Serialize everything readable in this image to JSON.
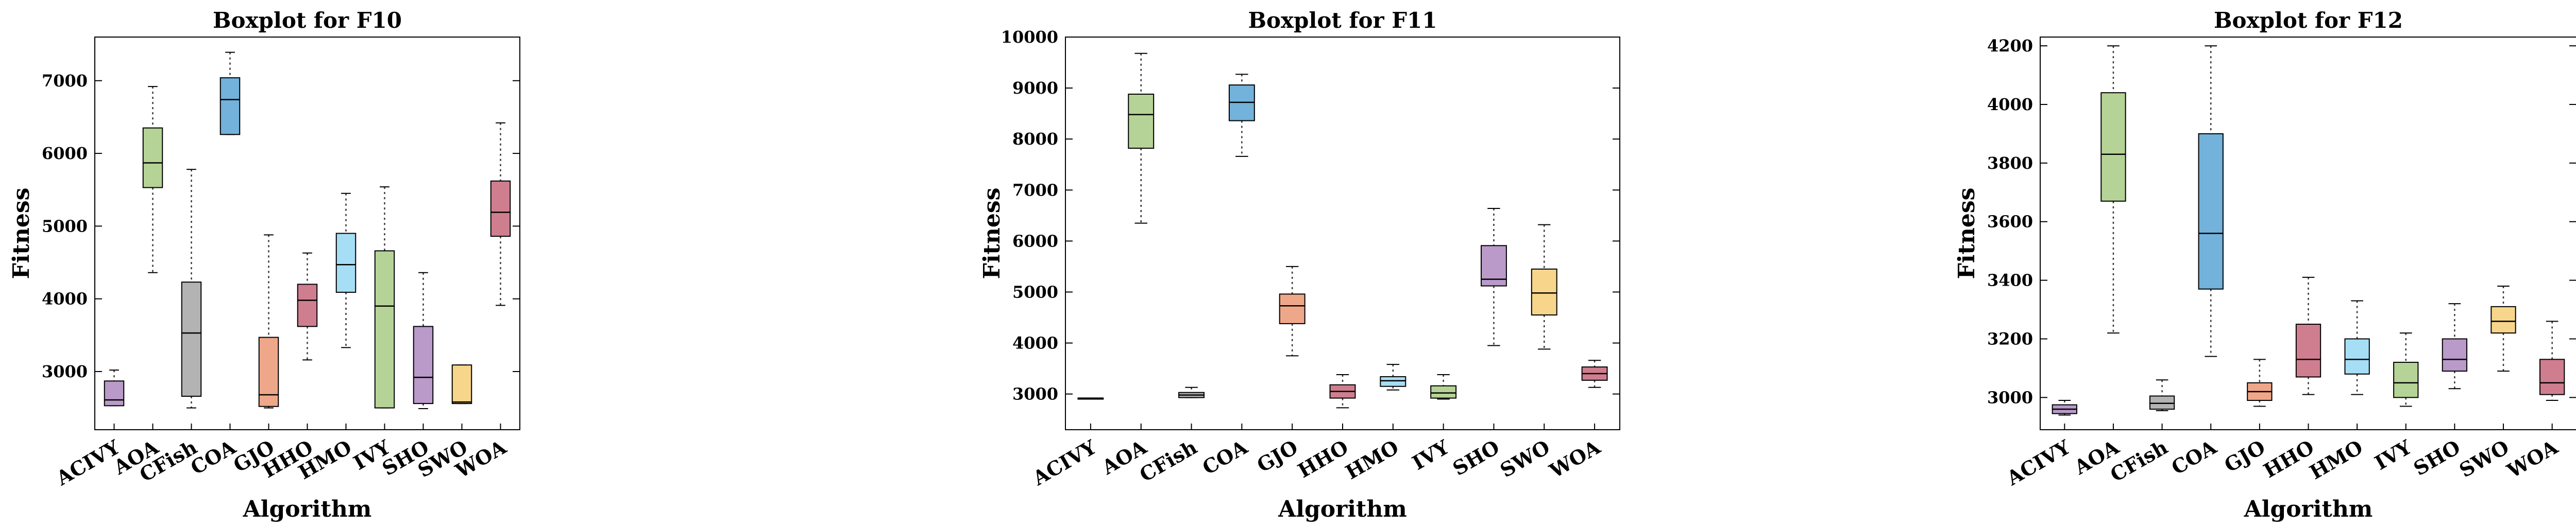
{
  "chart_data": [
    {
      "type": "boxplot",
      "title": "Boxplot for F10",
      "xlabel": "Algorithm",
      "ylabel": "Fitness",
      "ylim": [
        2200,
        7600
      ],
      "yticks": [
        3000,
        4000,
        5000,
        6000,
        7000
      ],
      "categories": [
        "ACIVY",
        "AOA",
        "CFish",
        "COA",
        "GJO",
        "HHO",
        "HMO",
        "IVY",
        "SHO",
        "SWO",
        "WOA"
      ],
      "boxes": [
        {
          "min": 2530,
          "q1": 2530,
          "median": 2610,
          "q3": 2870,
          "max": 3020,
          "color": "#b99ac9"
        },
        {
          "min": 4360,
          "q1": 5530,
          "median": 5870,
          "q3": 6350,
          "max": 6920,
          "color": "#b5d396"
        },
        {
          "min": 2500,
          "q1": 2660,
          "median": 3530,
          "q3": 4230,
          "max": 5780,
          "color": "#b3b3b3"
        },
        {
          "min": 6260,
          "q1": 6260,
          "median": 6740,
          "q3": 7040,
          "max": 7390,
          "color": "#73b2da"
        },
        {
          "min": 2500,
          "q1": 2520,
          "median": 2680,
          "q3": 3470,
          "max": 4880,
          "color": "#efa789"
        },
        {
          "min": 3160,
          "q1": 3620,
          "median": 3980,
          "q3": 4200,
          "max": 4630,
          "color": "#cf7e8f"
        },
        {
          "min": 3330,
          "q1": 4090,
          "median": 4470,
          "q3": 4900,
          "max": 5450,
          "color": "#a6def5"
        },
        {
          "min": 2500,
          "q1": 2500,
          "median": 3900,
          "q3": 4660,
          "max": 5540,
          "color": "#b5d396"
        },
        {
          "min": 2490,
          "q1": 2560,
          "median": 2920,
          "q3": 3620,
          "max": 4360,
          "color": "#b99ac9"
        },
        {
          "min": 2560,
          "q1": 2560,
          "median": 2580,
          "q3": 3090,
          "max": 3090,
          "color": "#f7d68b"
        },
        {
          "min": 3910,
          "q1": 4860,
          "median": 5190,
          "q3": 5620,
          "max": 6420,
          "color": "#cf7e8f"
        }
      ]
    },
    {
      "type": "boxplot",
      "title": "Boxplot for F11",
      "xlabel": "Algorithm",
      "ylabel": "Fitness",
      "ylim": [
        2300,
        10000
      ],
      "yticks": [
        3000,
        4000,
        5000,
        6000,
        7000,
        8000,
        9000,
        10000
      ],
      "categories": [
        "ACIVY",
        "AOA",
        "CFish",
        "COA",
        "GJO",
        "HHO",
        "HMO",
        "IVY",
        "SHO",
        "SWO",
        "WOA"
      ],
      "boxes": [
        {
          "min": 2920,
          "q1": 2920,
          "median": 2920,
          "q3": 2920,
          "max": 2920,
          "color": "#b99ac9"
        },
        {
          "min": 6350,
          "q1": 7820,
          "median": 8480,
          "q3": 8880,
          "max": 9680,
          "color": "#b5d396"
        },
        {
          "min": 2930,
          "q1": 2930,
          "median": 2980,
          "q3": 3030,
          "max": 3130,
          "color": "#b3b3b3"
        },
        {
          "min": 7660,
          "q1": 8360,
          "median": 8720,
          "q3": 9060,
          "max": 9270,
          "color": "#73b2da"
        },
        {
          "min": 3750,
          "q1": 4380,
          "median": 4730,
          "q3": 4960,
          "max": 5500,
          "color": "#efa789"
        },
        {
          "min": 2730,
          "q1": 2920,
          "median": 3050,
          "q3": 3180,
          "max": 3380,
          "color": "#cf7e8f"
        },
        {
          "min": 3080,
          "q1": 3150,
          "median": 3260,
          "q3": 3340,
          "max": 3580,
          "color": "#a6def5"
        },
        {
          "min": 2900,
          "q1": 2920,
          "median": 3020,
          "q3": 3160,
          "max": 3380,
          "color": "#b5d396"
        },
        {
          "min": 3950,
          "q1": 5120,
          "median": 5250,
          "q3": 5910,
          "max": 6640,
          "color": "#b99ac9"
        },
        {
          "min": 3880,
          "q1": 4550,
          "median": 4980,
          "q3": 5450,
          "max": 6320,
          "color": "#f7d68b"
        },
        {
          "min": 3130,
          "q1": 3270,
          "median": 3400,
          "q3": 3530,
          "max": 3660,
          "color": "#cf7e8f"
        }
      ]
    },
    {
      "type": "boxplot",
      "title": "Boxplot for F12",
      "xlabel": "Algorithm",
      "ylabel": "Fitness",
      "ylim": [
        2890,
        4230
      ],
      "yticks": [
        3000,
        3200,
        3400,
        3600,
        3800,
        4000,
        4200
      ],
      "categories": [
        "ACIVY",
        "AOA",
        "CFish",
        "COA",
        "GJO",
        "HHO",
        "HMO",
        "IVY",
        "SHO",
        "SWO",
        "WOA"
      ],
      "boxes": [
        {
          "min": 2940,
          "q1": 2945,
          "median": 2960,
          "q3": 2975,
          "max": 2990,
          "color": "#b99ac9"
        },
        {
          "min": 3220,
          "q1": 3670,
          "median": 3830,
          "q3": 4040,
          "max": 4200,
          "color": "#b5d396"
        },
        {
          "min": 2955,
          "q1": 2960,
          "median": 2980,
          "q3": 3005,
          "max": 3060,
          "color": "#b3b3b3"
        },
        {
          "min": 3140,
          "q1": 3370,
          "median": 3560,
          "q3": 3900,
          "max": 4200,
          "color": "#73b2da"
        },
        {
          "min": 2970,
          "q1": 2990,
          "median": 3020,
          "q3": 3050,
          "max": 3130,
          "color": "#efa789"
        },
        {
          "min": 3010,
          "q1": 3070,
          "median": 3130,
          "q3": 3250,
          "max": 3410,
          "color": "#cf7e8f"
        },
        {
          "min": 3010,
          "q1": 3080,
          "median": 3130,
          "q3": 3200,
          "max": 3330,
          "color": "#a6def5"
        },
        {
          "min": 2970,
          "q1": 3000,
          "median": 3050,
          "q3": 3120,
          "max": 3220,
          "color": "#b5d396"
        },
        {
          "min": 3030,
          "q1": 3090,
          "median": 3130,
          "q3": 3200,
          "max": 3320,
          "color": "#b99ac9"
        },
        {
          "min": 3090,
          "q1": 3220,
          "median": 3260,
          "q3": 3310,
          "max": 3380,
          "color": "#f7d68b"
        },
        {
          "min": 2990,
          "q1": 3010,
          "median": 3050,
          "q3": 3130,
          "max": 3260,
          "color": "#cf7e8f"
        }
      ]
    }
  ]
}
